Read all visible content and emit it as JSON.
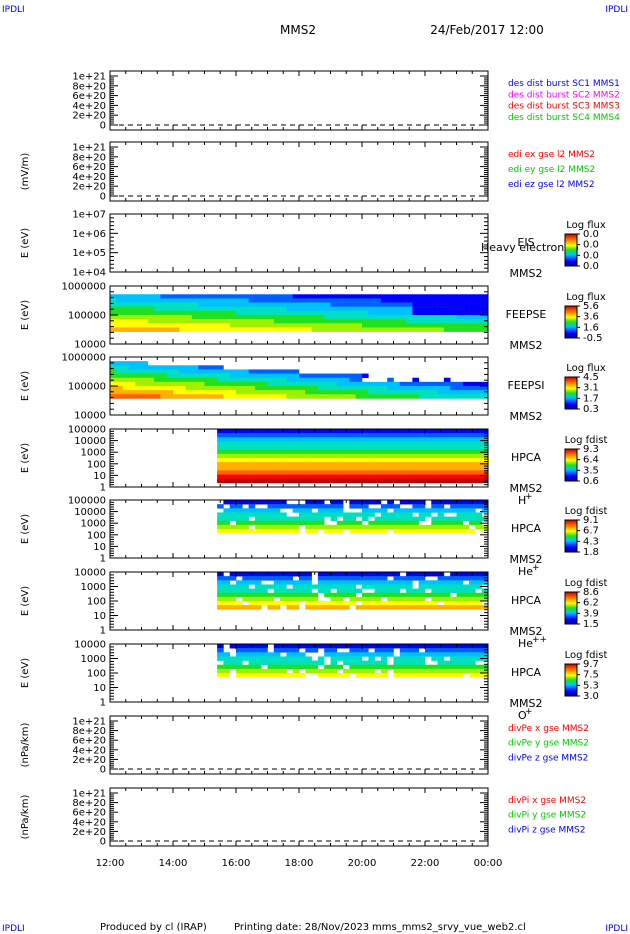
{
  "header": {
    "corner_tl": "IPDLI",
    "corner_tr": "IPDLI",
    "corner_bl": "IPDLI",
    "corner_br": "IPDLI",
    "spacecraft": "MMS2",
    "datetime": "24/Feb/2017 12:00"
  },
  "footer": {
    "credit": "Produced by cl (IRAP)",
    "printing": "Printing date: 28/Nov/2023",
    "file": "mms_mms2_srvy_vue_web2.cl"
  },
  "colors": {
    "blue": "#0000ff",
    "magenta": "#ff00ff",
    "red": "#ff0000",
    "green": "#00cc00"
  },
  "chart_data": [
    {
      "type": "line",
      "ylabel": "",
      "yticks": [
        "1e+21",
        "8e+20",
        "6e+20",
        "4e+20",
        "2e+20",
        "0"
      ],
      "legend": [
        {
          "label": "des dist burst SC1 MMS1",
          "color": "#0000ff"
        },
        {
          "label": "des dist burst SC2 MMS2",
          "color": "#ff00ff"
        },
        {
          "label": "des dist burst SC3 MMS3",
          "color": "#ff0000"
        },
        {
          "label": "des dist burst SC4 MMS4",
          "color": "#00cc00"
        }
      ],
      "series": []
    },
    {
      "type": "line",
      "ylabel": "(mV/m)",
      "yticks": [
        "1e+21",
        "8e+20",
        "6e+20",
        "4e+20",
        "2e+20",
        "0"
      ],
      "legend": [
        {
          "label": "edi ex gse l2 MMS2",
          "color": "#ff0000"
        },
        {
          "label": "edi ey gse l2 MMS2",
          "color": "#00cc00"
        },
        {
          "label": "edi ez gse l2 MMS2",
          "color": "#0000ff"
        }
      ],
      "series": []
    },
    {
      "type": "heatmap",
      "ylabel": "E (eV)",
      "yticks": [
        "1e+07",
        "1e+06",
        "1e+05",
        "1e+04"
      ],
      "instrument": "EIS",
      "instrument_extra": "Heavy electron to",
      "spacecraft": "MMS2",
      "colorbar_title": "Log flux",
      "colorbar_ticks": [
        "0.0",
        "0.0",
        "0.0",
        "0.0"
      ]
    },
    {
      "type": "heatmap",
      "ylabel": "E (eV)",
      "yticks": [
        "1000000",
        "100000",
        "10000"
      ],
      "instrument": "FEEPSE",
      "spacecraft": "MMS2",
      "colorbar_title": "Log flux",
      "colorbar_ticks": [
        "5.6",
        "3.6",
        "1.6",
        "-0.5"
      ]
    },
    {
      "type": "heatmap",
      "ylabel": "E (eV)",
      "yticks": [
        "1000000",
        "100000",
        "10000"
      ],
      "instrument": "FEEPSI",
      "spacecraft": "MMS2",
      "colorbar_title": "Log flux",
      "colorbar_ticks": [
        "4.5",
        "3.1",
        "1.7",
        "0.3"
      ]
    },
    {
      "type": "heatmap",
      "ylabel": "E (eV)",
      "yticks": [
        "100000",
        "10000",
        "1000",
        "100",
        "10",
        "1"
      ],
      "instrument": "HPCA",
      "spacecraft": "MMS2",
      "species": "H",
      "species_sup": "+",
      "colorbar_title": "Log fdist",
      "colorbar_ticks": [
        "9.3",
        "6.4",
        "3.5",
        "0.6"
      ]
    },
    {
      "type": "heatmap",
      "ylabel": "E (eV)",
      "yticks": [
        "100000",
        "10000",
        "1000",
        "100",
        "10",
        "1"
      ],
      "instrument": "HPCA",
      "spacecraft": "MMS2",
      "species": "He",
      "species_sup": "+",
      "colorbar_title": "Log fdist",
      "colorbar_ticks": [
        "9.1",
        "6.7",
        "4.3",
        "1.8"
      ]
    },
    {
      "type": "heatmap",
      "ylabel": "E (eV)",
      "yticks": [
        "10000",
        "1000",
        "100",
        "10",
        "1"
      ],
      "instrument": "HPCA",
      "spacecraft": "MMS2",
      "species": "He",
      "species_sup": "++",
      "colorbar_title": "Log fdist",
      "colorbar_ticks": [
        "8.6",
        "6.2",
        "3.9",
        "1.5"
      ]
    },
    {
      "type": "heatmap",
      "ylabel": "E (eV)",
      "yticks": [
        "10000",
        "1000",
        "100",
        "10",
        "1"
      ],
      "instrument": "HPCA",
      "spacecraft": "MMS2",
      "species": "O",
      "species_sup": "+",
      "colorbar_title": "Log fdist",
      "colorbar_ticks": [
        "9.7",
        "7.5",
        "5.3",
        "3.0"
      ]
    },
    {
      "type": "line",
      "ylabel": "(nPa/km)",
      "yticks": [
        "1e+21",
        "8e+20",
        "6e+20",
        "4e+20",
        "2e+20",
        "0"
      ],
      "legend": [
        {
          "label": "divPe x gse MMS2",
          "color": "#ff0000"
        },
        {
          "label": "divPe y gse MMS2",
          "color": "#00cc00"
        },
        {
          "label": "divPe z gse MMS2",
          "color": "#0000ff"
        }
      ],
      "series": []
    },
    {
      "type": "line",
      "ylabel": "(nPa/km)",
      "yticks": [
        "1e+21",
        "8e+20",
        "6e+20",
        "4e+20",
        "2e+20",
        "0"
      ],
      "legend": [
        {
          "label": "divPi x gse MMS2",
          "color": "#ff0000"
        },
        {
          "label": "divPi y gse MMS2",
          "color": "#00cc00"
        },
        {
          "label": "divPi z gse MMS2",
          "color": "#0000ff"
        }
      ],
      "series": []
    }
  ],
  "time_axis": {
    "ticks": [
      "12:00",
      "14:00",
      "16:00",
      "18:00",
      "20:00",
      "22:00",
      "00:00"
    ],
    "range_hours": [
      12,
      24
    ]
  }
}
